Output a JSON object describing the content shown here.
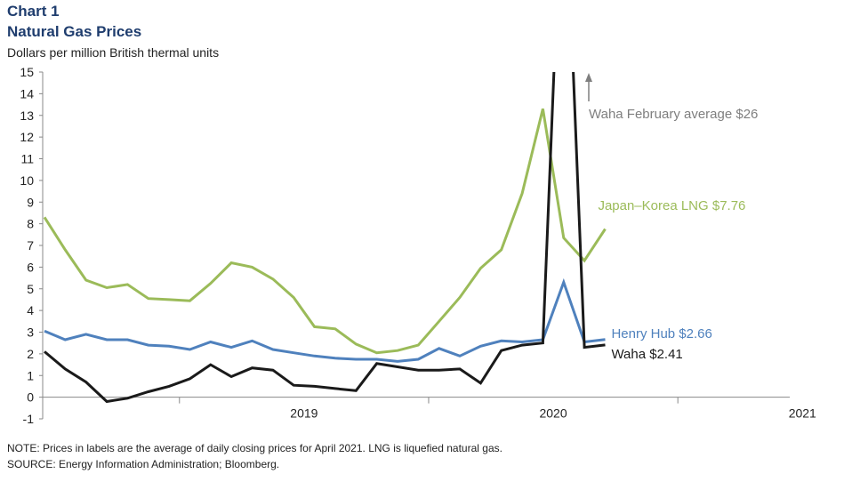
{
  "header": {
    "chart_number": "Chart 1",
    "title": "Natural Gas Prices",
    "units": "Dollars per million British thermal units"
  },
  "footer": {
    "note": "NOTE: Prices in labels are the average  of daily closing prices for April 2021. LNG is liquefied  natural gas.",
    "source": "SOURCE:  Energy Information  Administration; Bloomberg."
  },
  "colors": {
    "japan_korea": "#9bbb59",
    "henry_hub": "#4f81bd",
    "waha": "#1a1a1a",
    "annotation": "#7f7f7f"
  },
  "chart_data": {
    "type": "line",
    "ylim": [
      -1,
      15
    ],
    "yticks": [
      "-1",
      "0",
      "1",
      "2",
      "3",
      "4",
      "5",
      "6",
      "7",
      "8",
      "9",
      "10",
      "11",
      "12",
      "13",
      "14",
      "15"
    ],
    "x_start": "2018-06",
    "x_axis_labels": [
      {
        "label": "2019",
        "month": "2019-06"
      },
      {
        "label": "2020",
        "month": "2020-06"
      },
      {
        "label": "2021",
        "month": "2021-06"
      }
    ],
    "year_dividers": [
      "2018-12",
      "2019-12",
      "2020-12",
      "2021-12"
    ],
    "series": [
      {
        "key": "japan_korea",
        "label": "Japan–Korea LNG $7.76",
        "values": [
          8.3,
          6.8,
          5.4,
          5.05,
          5.2,
          4.55,
          4.5,
          4.45,
          5.25,
          6.2,
          6.0,
          5.45,
          4.6,
          3.25,
          3.15,
          2.45,
          2.05,
          2.15,
          2.4,
          3.5,
          4.6,
          5.95,
          6.8,
          9.4,
          13.3,
          7.35,
          6.3,
          7.76
        ]
      },
      {
        "key": "henry_hub",
        "label": "Henry Hub $2.66",
        "values": [
          3.05,
          2.65,
          2.9,
          2.65,
          2.65,
          2.4,
          2.35,
          2.2,
          2.55,
          2.3,
          2.6,
          2.2,
          2.05,
          1.9,
          1.8,
          1.75,
          1.75,
          1.65,
          1.75,
          2.25,
          1.9,
          2.35,
          2.6,
          2.55,
          2.65,
          5.3,
          2.55,
          2.66
        ]
      },
      {
        "key": "waha",
        "label": "Waha $2.41",
        "values": [
          2.1,
          1.3,
          0.7,
          -0.2,
          -0.05,
          0.25,
          0.5,
          0.85,
          1.5,
          0.95,
          1.35,
          1.25,
          0.55,
          0.5,
          0.4,
          0.3,
          1.55,
          1.4,
          1.25,
          1.25,
          1.3,
          0.65,
          2.15,
          2.4,
          2.5,
          26,
          2.3,
          2.41
        ]
      }
    ],
    "annotation": "Waha February average $26"
  }
}
